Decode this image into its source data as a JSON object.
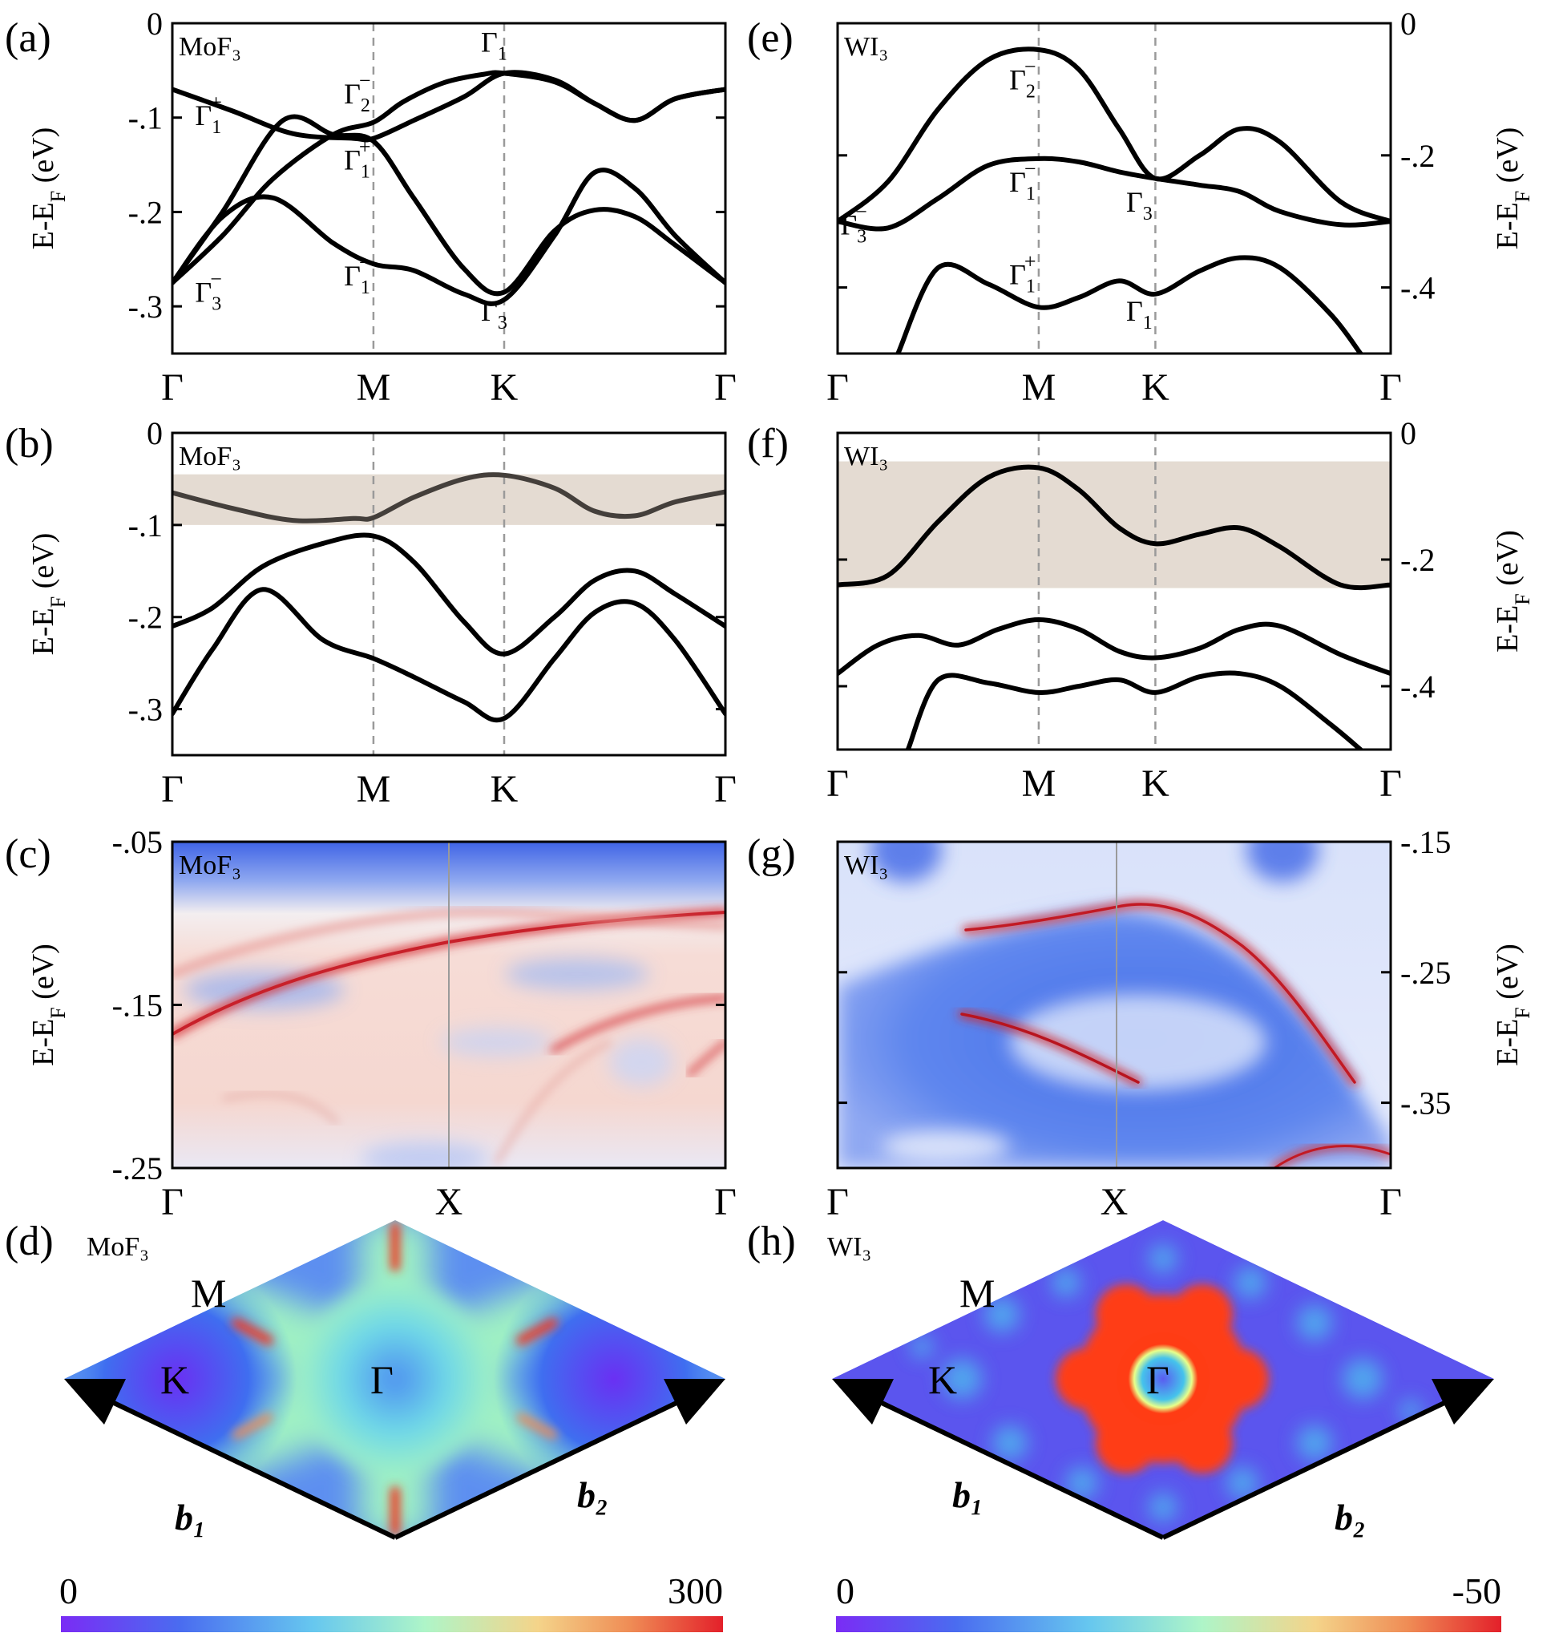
{
  "figure": {
    "panels": {
      "a": {
        "letter": "(a)",
        "compound": "MoF₃"
      },
      "b": {
        "letter": "(b)",
        "compound": "MoF₃"
      },
      "c": {
        "letter": "(c)",
        "compound": "MoF₃"
      },
      "d": {
        "letter": "(d)",
        "compound": "MoF₃"
      },
      "e": {
        "letter": "(e)",
        "compound": "WI₃"
      },
      "f": {
        "letter": "(f)",
        "compound": "WI₃"
      },
      "g": {
        "letter": "(g)",
        "compound": "WI₃"
      },
      "h": {
        "letter": "(h)",
        "compound": "WI₃"
      }
    },
    "ylabel": "E-E_F (eV)",
    "kpath_band": [
      "Γ",
      "M",
      "K",
      "Γ"
    ],
    "kpath_surface": [
      "Γ",
      "X",
      "Γ"
    ],
    "bz_points": {
      "gamma": "Γ",
      "m": "M",
      "k": "K"
    },
    "vectors": {
      "b1": "b₁",
      "b2": "b₂"
    },
    "colorbars": {
      "mof3": {
        "min": "0",
        "max": "300"
      },
      "wi3": {
        "min": "0",
        "max": "-50"
      }
    }
  },
  "chart_data": [
    {
      "id": "a",
      "type": "line",
      "compound": "MoF₃",
      "x_ticks": [
        "Γ",
        "M",
        "K",
        "Γ"
      ],
      "x_nodes": [
        0,
        1,
        1.65,
        2.75
      ],
      "ylim": [
        -0.35,
        0
      ],
      "yticks": [
        0,
        -0.1,
        -0.2,
        -0.3
      ],
      "ylabel": "E-E_F (eV)",
      "bands": [
        {
          "x": [
            0,
            0.3,
            0.6,
            0.9,
            1,
            1.2,
            1.45,
            1.65,
            1.9,
            2.1,
            2.3,
            2.5,
            2.75
          ],
          "y": [
            -0.07,
            -0.093,
            -0.117,
            -0.122,
            -0.122,
            -0.103,
            -0.078,
            -0.053,
            -0.06,
            -0.085,
            -0.103,
            -0.08,
            -0.07
          ]
        },
        {
          "x": [
            0,
            0.25,
            0.5,
            0.8,
            1,
            1.15,
            1.35,
            1.55,
            1.65,
            1.9,
            2.1,
            2.3,
            2.5,
            2.75
          ],
          "y": [
            -0.275,
            -0.225,
            -0.165,
            -0.118,
            -0.105,
            -0.083,
            -0.063,
            -0.054,
            -0.053,
            -0.062,
            -0.085,
            -0.103,
            -0.08,
            -0.07
          ]
        },
        {
          "x": [
            0,
            0.25,
            0.5,
            0.8,
            1,
            1.2,
            1.45,
            1.65,
            1.9,
            2.1,
            2.3,
            2.5,
            2.75
          ],
          "y": [
            -0.275,
            -0.205,
            -0.185,
            -0.233,
            -0.255,
            -0.262,
            -0.287,
            -0.293,
            -0.225,
            -0.158,
            -0.175,
            -0.225,
            -0.275
          ]
        },
        {
          "x": [
            0,
            0.25,
            0.55,
            0.8,
            1,
            1.2,
            1.45,
            1.65,
            1.9,
            2.1,
            2.3,
            2.5,
            2.75
          ],
          "y": [
            -0.275,
            -0.2,
            -0.103,
            -0.118,
            -0.125,
            -0.185,
            -0.26,
            -0.285,
            -0.22,
            -0.198,
            -0.205,
            -0.235,
            -0.275
          ]
        }
      ],
      "irreps": [
        {
          "x": 0.18,
          "y": -0.108,
          "base": "Γ",
          "sub": "1",
          "sup": "+"
        },
        {
          "x": 0.18,
          "y": -0.295,
          "base": "Γ",
          "sub": "3",
          "sup": "−"
        },
        {
          "x": 0.92,
          "y": -0.085,
          "base": "Γ",
          "sub": "2",
          "sup": "−"
        },
        {
          "x": 0.92,
          "y": -0.155,
          "base": "Γ",
          "sub": "1",
          "sup": "+"
        },
        {
          "x": 0.92,
          "y": -0.278,
          "base": "Γ",
          "sub": "1",
          "sup": "−"
        },
        {
          "x": 1.6,
          "y": -0.03,
          "base": "Γ",
          "sub": "1",
          "sup": ""
        },
        {
          "x": 1.6,
          "y": -0.315,
          "base": "Γ",
          "sub": "3",
          "sup": ""
        }
      ]
    },
    {
      "id": "b",
      "type": "line",
      "compound": "MoF₃",
      "x_ticks": [
        "Γ",
        "M",
        "K",
        "Γ"
      ],
      "x_nodes": [
        0,
        1,
        1.65,
        2.75
      ],
      "ylim": [
        -0.35,
        0
      ],
      "yticks": [
        0,
        -0.1,
        -0.2,
        -0.3
      ],
      "ylabel": "E-E_F (eV)",
      "shaded_band": [
        -0.1,
        -0.045
      ],
      "bands": [
        {
          "x": [
            0,
            0.3,
            0.6,
            0.9,
            1,
            1.2,
            1.45,
            1.65,
            1.9,
            2.1,
            2.3,
            2.5,
            2.75
          ],
          "y": [
            -0.065,
            -0.082,
            -0.095,
            -0.093,
            -0.092,
            -0.07,
            -0.05,
            -0.046,
            -0.06,
            -0.085,
            -0.09,
            -0.075,
            -0.064
          ],
          "highlight": true
        },
        {
          "x": [
            0,
            0.2,
            0.45,
            0.75,
            1,
            1.2,
            1.45,
            1.65,
            1.9,
            2.1,
            2.3,
            2.5,
            2.75
          ],
          "y": [
            -0.21,
            -0.19,
            -0.145,
            -0.12,
            -0.112,
            -0.14,
            -0.205,
            -0.24,
            -0.2,
            -0.16,
            -0.15,
            -0.175,
            -0.21
          ]
        },
        {
          "x": [
            0,
            0.2,
            0.45,
            0.75,
            1,
            1.2,
            1.45,
            1.65,
            1.9,
            2.1,
            2.3,
            2.5,
            2.75
          ],
          "y": [
            -0.305,
            -0.235,
            -0.17,
            -0.225,
            -0.245,
            -0.265,
            -0.292,
            -0.31,
            -0.245,
            -0.195,
            -0.185,
            -0.225,
            -0.305
          ]
        }
      ]
    },
    {
      "id": "c",
      "type": "heatmap",
      "compound": "MoF₃",
      "x_ticks": [
        "Γ",
        "X",
        "Γ"
      ],
      "ylim": [
        -0.25,
        -0.05
      ],
      "yticks": [
        -0.05,
        -0.15,
        -0.25
      ],
      "ylabel": "E-E_F (eV)"
    },
    {
      "id": "d",
      "type": "heatmap",
      "compound": "MoF₃",
      "colorbar": {
        "min": 0,
        "max": 300
      }
    },
    {
      "id": "e",
      "type": "line",
      "compound": "WI₃",
      "x_ticks": [
        "Γ",
        "M",
        "K",
        "Γ"
      ],
      "x_nodes": [
        0,
        1,
        1.58,
        2.75
      ],
      "ylim": [
        -0.5,
        0
      ],
      "yticks": [
        0,
        -0.2,
        -0.4
      ],
      "ylabel": "E-E_F (eV)",
      "bands": [
        {
          "x": [
            0,
            0.25,
            0.5,
            0.75,
            1,
            1.2,
            1.4,
            1.58,
            1.8,
            2.0,
            2.2,
            2.5,
            2.75
          ],
          "y": [
            -0.3,
            -0.24,
            -0.13,
            -0.055,
            -0.04,
            -0.07,
            -0.16,
            -0.235,
            -0.2,
            -0.16,
            -0.18,
            -0.27,
            -0.3
          ]
        },
        {
          "x": [
            0,
            0.25,
            0.5,
            0.75,
            1,
            1.2,
            1.4,
            1.58,
            1.8,
            2.0,
            2.2,
            2.5,
            2.75
          ],
          "y": [
            -0.3,
            -0.31,
            -0.265,
            -0.215,
            -0.205,
            -0.21,
            -0.225,
            -0.235,
            -0.245,
            -0.255,
            -0.285,
            -0.305,
            -0.3
          ]
        },
        {
          "x": [
            0.3,
            0.5,
            0.75,
            1,
            1.2,
            1.4,
            1.58,
            1.8,
            2.0,
            2.2,
            2.45,
            2.6
          ],
          "y": [
            -0.5,
            -0.37,
            -0.395,
            -0.43,
            -0.415,
            -0.39,
            -0.41,
            -0.375,
            -0.355,
            -0.37,
            -0.44,
            -0.5
          ]
        }
      ],
      "irreps": [
        {
          "x": 0.08,
          "y": -0.32,
          "base": "Γ",
          "sub": "3",
          "sup": "−"
        },
        {
          "x": 0.92,
          "y": -0.1,
          "base": "Γ",
          "sub": "2",
          "sup": "−"
        },
        {
          "x": 0.92,
          "y": -0.255,
          "base": "Γ",
          "sub": "1",
          "sup": "−"
        },
        {
          "x": 1.5,
          "y": -0.285,
          "base": "Γ",
          "sub": "3",
          "sup": ""
        },
        {
          "x": 0.92,
          "y": -0.395,
          "base": "Γ",
          "sub": "1",
          "sup": "+"
        },
        {
          "x": 1.5,
          "y": -0.45,
          "base": "Γ",
          "sub": "1",
          "sup": ""
        }
      ]
    },
    {
      "id": "f",
      "type": "line",
      "compound": "WI₃",
      "x_ticks": [
        "Γ",
        "M",
        "K",
        "Γ"
      ],
      "x_nodes": [
        0,
        1,
        1.58,
        2.75
      ],
      "ylim": [
        -0.5,
        0
      ],
      "yticks": [
        0,
        -0.2,
        -0.4
      ],
      "ylabel": "E-E_F (eV)",
      "shaded_band": [
        -0.245,
        -0.045
      ],
      "bands": [
        {
          "x": [
            0,
            0.25,
            0.5,
            0.75,
            1,
            1.2,
            1.4,
            1.58,
            1.8,
            2.0,
            2.2,
            2.5,
            2.75
          ],
          "y": [
            -0.24,
            -0.225,
            -0.14,
            -0.07,
            -0.055,
            -0.09,
            -0.15,
            -0.175,
            -0.16,
            -0.15,
            -0.18,
            -0.24,
            -0.24
          ]
        },
        {
          "x": [
            0,
            0.2,
            0.4,
            0.6,
            0.8,
            1,
            1.2,
            1.4,
            1.58,
            1.8,
            2.0,
            2.2,
            2.5,
            2.75
          ],
          "y": [
            -0.38,
            -0.335,
            -0.32,
            -0.335,
            -0.31,
            -0.295,
            -0.31,
            -0.345,
            -0.355,
            -0.34,
            -0.31,
            -0.305,
            -0.35,
            -0.38
          ]
        },
        {
          "x": [
            0.35,
            0.5,
            0.75,
            1,
            1.2,
            1.4,
            1.58,
            1.8,
            2.0,
            2.2,
            2.45,
            2.6
          ],
          "y": [
            -0.5,
            -0.39,
            -0.395,
            -0.41,
            -0.4,
            -0.39,
            -0.41,
            -0.385,
            -0.38,
            -0.4,
            -0.46,
            -0.5
          ]
        }
      ]
    },
    {
      "id": "g",
      "type": "heatmap",
      "compound": "WI₃",
      "x_ticks": [
        "Γ",
        "X",
        "Γ"
      ],
      "ylim": [
        -0.4,
        -0.15
      ],
      "yticks": [
        -0.15,
        -0.25,
        -0.35
      ],
      "ylabel": "E-E_F (eV)"
    },
    {
      "id": "h",
      "type": "heatmap",
      "compound": "WI₃",
      "colorbar": {
        "min": 0,
        "max": -50
      }
    }
  ]
}
